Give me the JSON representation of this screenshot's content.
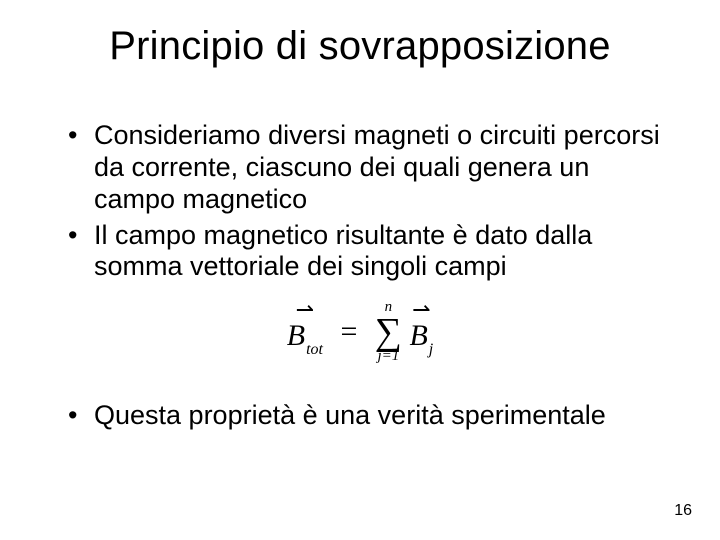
{
  "title": "Principio di sovrapposizione",
  "bullets": {
    "b1": "Consideriamo diversi magneti o circuiti percorsi da corrente, ciascuno dei quali genera un campo magnetico",
    "b2": "Il campo magnetico risultante è dato dalla somma vettoriale dei singoli campi",
    "b3": "Questa proprietà è una verità sperimentale"
  },
  "formula": {
    "lhs_arrow": "⇀",
    "lhs_sym": "B",
    "lhs_sub": "tot",
    "eq": "=",
    "sum_top": "n",
    "sum_sym": "∑",
    "sum_bot": "j=1",
    "rhs_arrow": "⇀",
    "rhs_sym": "B",
    "rhs_sub": "j"
  },
  "page_number": "16",
  "colors": {
    "background": "#ffffff",
    "text": "#000000"
  },
  "fonts": {
    "body_family": "Arial",
    "formula_family": "Times New Roman",
    "title_size_pt": 40,
    "body_size_pt": 27,
    "formula_size_pt": 30
  }
}
